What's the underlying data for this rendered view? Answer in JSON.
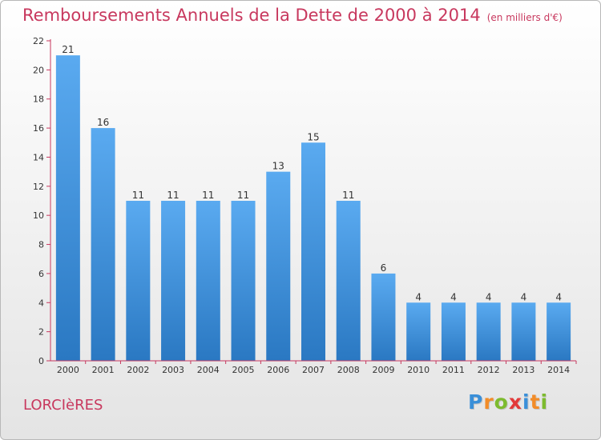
{
  "header": {
    "title": "Remboursements Annuels de la Dette de 2000 à 2014",
    "subtitle": "(en milliers d'€)"
  },
  "footer": {
    "commune": "LORCIèRES",
    "logo_letters": [
      "P",
      "r",
      "o",
      "x",
      "i",
      "t",
      "i"
    ],
    "logo_colors": [
      "#3a8fd8",
      "#f28c28",
      "#7dbb2f",
      "#e23a3a",
      "#3a8fd8",
      "#f28c28",
      "#7dbb2f"
    ]
  },
  "chart_data": {
    "type": "bar",
    "title": "Remboursements Annuels de la Dette de 2000 à 2014",
    "xlabel": "",
    "ylabel": "",
    "categories": [
      "2000",
      "2001",
      "2002",
      "2003",
      "2004",
      "2005",
      "2006",
      "2007",
      "2008",
      "2009",
      "2010",
      "2011",
      "2012",
      "2013",
      "2014"
    ],
    "values": [
      21,
      16,
      11,
      11,
      11,
      11,
      13,
      15,
      11,
      6,
      4,
      4,
      4,
      4,
      4
    ],
    "ylim": [
      0,
      22
    ],
    "yticks": [
      0,
      2,
      4,
      6,
      8,
      10,
      12,
      14,
      16,
      18,
      20,
      22
    ],
    "grid": false,
    "legend": "none",
    "bar_color_top": "#5aaaf0",
    "bar_color_bottom": "#2a78c2",
    "axis_color": "#c8385e"
  }
}
